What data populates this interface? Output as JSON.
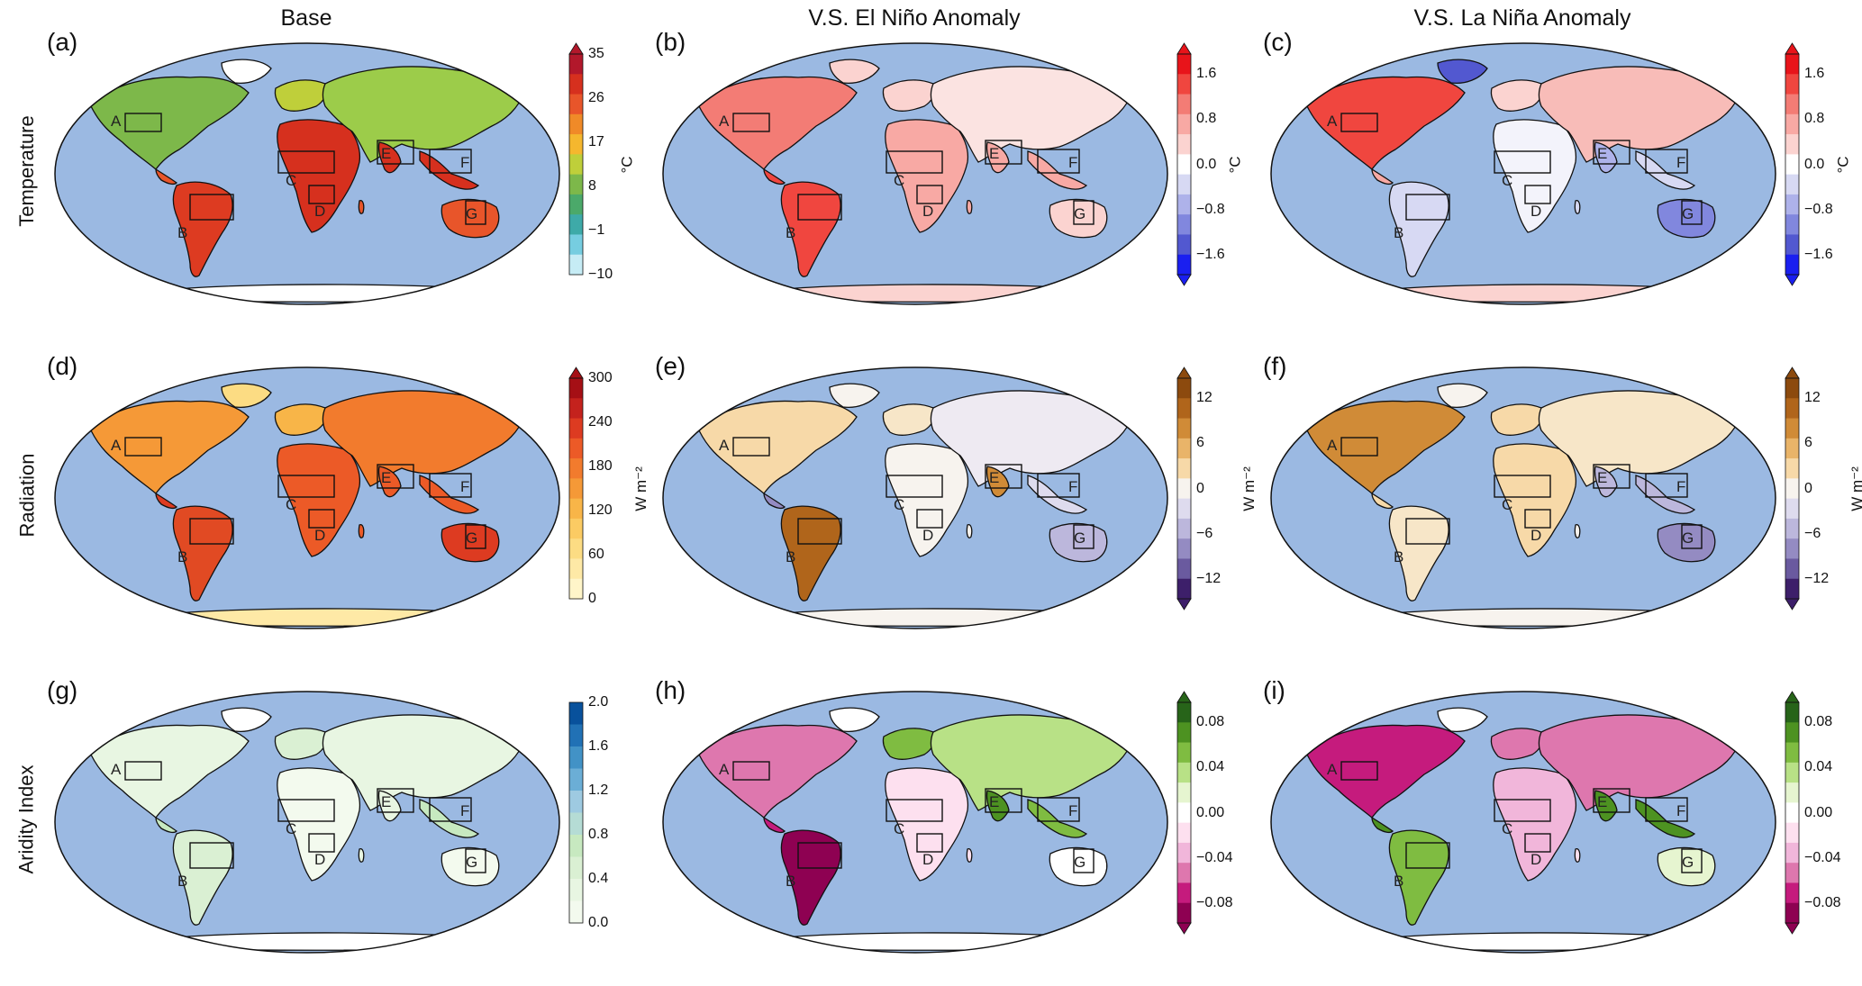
{
  "columns": [
    "Base",
    "V.S. El Niño Anomaly",
    "V.S. La Niña Anomaly"
  ],
  "rows": [
    "Temperature",
    "Radiation",
    "Aridity Index"
  ],
  "panels": [
    {
      "letter": "(a)",
      "row": 0,
      "col": 0,
      "scheme": "temp_base"
    },
    {
      "letter": "(b)",
      "row": 0,
      "col": 1,
      "scheme": "temp_elnino"
    },
    {
      "letter": "(c)",
      "row": 0,
      "col": 2,
      "scheme": "temp_lanina"
    },
    {
      "letter": "(d)",
      "row": 1,
      "col": 0,
      "scheme": "rad_base"
    },
    {
      "letter": "(e)",
      "row": 1,
      "col": 1,
      "scheme": "rad_elnino"
    },
    {
      "letter": "(f)",
      "row": 1,
      "col": 2,
      "scheme": "rad_lanina"
    },
    {
      "letter": "(g)",
      "row": 2,
      "col": 0,
      "scheme": "ai_base"
    },
    {
      "letter": "(h)",
      "row": 2,
      "col": 1,
      "scheme": "ai_elnino"
    },
    {
      "letter": "(i)",
      "row": 2,
      "col": 2,
      "scheme": "ai_lanina"
    }
  ],
  "regions": [
    "A",
    "B",
    "C",
    "D",
    "E",
    "F",
    "G"
  ],
  "colorbars": [
    {
      "id": "temp_base",
      "ticks": [
        "35",
        "26",
        "17",
        "8",
        "−1",
        "−10"
      ],
      "unit": "°C",
      "extend": "max",
      "colors": [
        "#b2182b",
        "#d6301e",
        "#e8552a",
        "#f08a28",
        "#f5b72e",
        "#bfcf3a",
        "#7db84a",
        "#4ba96a",
        "#3eaaa8",
        "#76cde0",
        "#c6ecf5"
      ]
    },
    {
      "id": "temp_anom_b",
      "ticks": [
        "1.6",
        "0.8",
        "0.0",
        "−0.8",
        "−1.6"
      ],
      "unit": "°C",
      "extend": "both",
      "colors": [
        "#e8141a",
        "#f0463f",
        "#f37c75",
        "#f8a9a4",
        "#fbd3d0",
        "#ffffff",
        "#d7d9f3",
        "#aeb2ea",
        "#8187de",
        "#5258d0",
        "#1a1ff0"
      ]
    },
    {
      "id": "temp_anom_c",
      "ticks": [
        "1.6",
        "0.8",
        "0.0",
        "−0.8",
        "−1.6"
      ],
      "unit": "°C",
      "extend": "both",
      "colors": [
        "#e8141a",
        "#f0463f",
        "#f37c75",
        "#f8a9a4",
        "#fbd3d0",
        "#ffffff",
        "#d7d9f3",
        "#aeb2ea",
        "#8187de",
        "#5258d0",
        "#1a1ff0"
      ]
    },
    {
      "id": "rad_base",
      "ticks": [
        "300",
        "240",
        "180",
        "120",
        "60",
        "0"
      ],
      "unit": "W m⁻²",
      "extend": "max",
      "colors": [
        "#a50f15",
        "#c4221d",
        "#dd3b21",
        "#ec5a27",
        "#f27b2d",
        "#f59937",
        "#f8b548",
        "#fbcb63",
        "#fcdc83",
        "#fee9a6",
        "#fff5c9"
      ]
    },
    {
      "id": "rad_anom_e",
      "ticks": [
        "12",
        "6",
        "0",
        "−6",
        "−12"
      ],
      "unit": "W m⁻²",
      "extend": "both",
      "colors": [
        "#8c4a0e",
        "#b0651b",
        "#d08b37",
        "#e9b469",
        "#f7d9a8",
        "#f7f3ee",
        "#dedbee",
        "#bcb7dc",
        "#948bc2",
        "#6a5a9f",
        "#3d1f6a"
      ]
    },
    {
      "id": "rad_anom_f",
      "ticks": [
        "12",
        "6",
        "0",
        "−6",
        "−12"
      ],
      "unit": "W m⁻²",
      "extend": "both",
      "colors": [
        "#8c4a0e",
        "#b0651b",
        "#d08b37",
        "#e9b469",
        "#f7d9a8",
        "#f7f3ee",
        "#dedbee",
        "#bcb7dc",
        "#948bc2",
        "#6a5a9f",
        "#3d1f6a"
      ]
    },
    {
      "id": "ai_base",
      "ticks": [
        "2.0",
        "1.6",
        "1.2",
        "0.8",
        "0.4",
        "0.0"
      ],
      "unit": "",
      "extend": "neither",
      "colors": [
        "#08519c",
        "#2171b5",
        "#4292c6",
        "#6baed6",
        "#9ecae1",
        "#b5dcd5",
        "#c7e9c0",
        "#daf0d3",
        "#e8f6e2",
        "#f3faee"
      ]
    },
    {
      "id": "ai_anom_h",
      "ticks": [
        "0.08",
        "0.04",
        "0.00",
        "−0.04",
        "−0.08"
      ],
      "unit": "",
      "extend": "both",
      "colors": [
        "#276419",
        "#4d9221",
        "#7fbc41",
        "#b8e186",
        "#e6f5d0",
        "#ffffff",
        "#fde0ef",
        "#f1b6da",
        "#de77ae",
        "#c51b7d",
        "#8e0152"
      ]
    },
    {
      "id": "ai_anom_i",
      "ticks": [
        "0.08",
        "0.04",
        "0.00",
        "−0.04",
        "−0.08"
      ],
      "unit": "",
      "extend": "both",
      "colors": [
        "#276419",
        "#4d9221",
        "#7fbc41",
        "#b8e186",
        "#e6f5d0",
        "#ffffff",
        "#fde0ef",
        "#f1b6da",
        "#de77ae",
        "#c51b7d",
        "#8e0152"
      ]
    }
  ],
  "chart_data": {
    "type": "heatmap",
    "description_grid": "3x3 global maps (Robinson projection)",
    "variables": [
      {
        "name": "Temperature",
        "unit": "°C",
        "base_range": [
          -10,
          35
        ],
        "anomaly_range": [
          -1.6,
          1.6
        ]
      },
      {
        "name": "Radiation",
        "unit": "W m−2",
        "base_range": [
          0,
          300
        ],
        "anomaly_range": [
          -12,
          12
        ]
      },
      {
        "name": "Aridity Index",
        "unit": "",
        "base_range": [
          0.0,
          2.0
        ],
        "anomaly_range": [
          -0.08,
          0.08
        ]
      }
    ],
    "columns": [
      "Base",
      "V.S. El Niño Anomaly",
      "V.S. La Niña Anomaly"
    ],
    "region_boxes": [
      "A",
      "B",
      "C",
      "D",
      "E",
      "F",
      "G"
    ]
  }
}
